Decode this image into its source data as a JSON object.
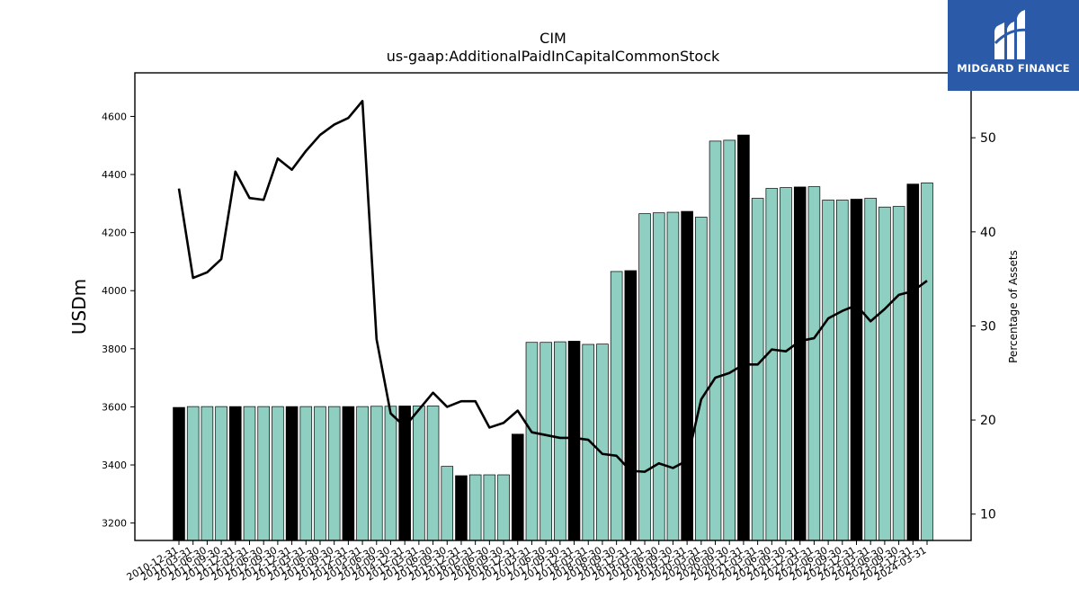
{
  "chart_data": {
    "type": "bar",
    "title": "CIM",
    "subtitle": "us-gaap:AdditionalPaidInCapitalCommonStock",
    "ylabel": "USDm",
    "y2label": "Percentage of Assets",
    "ylim": [
      3140,
      4750
    ],
    "y2lim": [
      7.2,
      56.9
    ],
    "yticks": [
      3200,
      3400,
      3600,
      3800,
      4000,
      4200,
      4400,
      4600
    ],
    "y2ticks": [
      10,
      20,
      30,
      40,
      50
    ],
    "grid": false,
    "categories": [
      "2010-12-31",
      "2011-03-31",
      "2011-06-30",
      "2011-09-30",
      "2011-12-31",
      "2012-03-31",
      "2012-06-30",
      "2012-09-30",
      "2012-12-31",
      "2013-03-31",
      "2013-06-30",
      "2013-09-30",
      "2013-12-31",
      "2014-03-31",
      "2014-06-30",
      "2014-09-30",
      "2014-12-31",
      "2015-03-31",
      "2015-06-30",
      "2015-09-30",
      "2015-12-31",
      "2016-03-31",
      "2016-06-30",
      "2016-09-30",
      "2016-12-31",
      "2017-03-31",
      "2017-06-30",
      "2017-09-30",
      "2017-12-31",
      "2018-03-31",
      "2018-06-30",
      "2018-09-30",
      "2018-12-31",
      "2019-03-31",
      "2019-06-30",
      "2019-09-30",
      "2019-12-31",
      "2020-03-31",
      "2020-06-30",
      "2020-09-30",
      "2020-12-31",
      "2021-03-31",
      "2021-06-30",
      "2021-09-30",
      "2021-12-31",
      "2022-03-31",
      "2022-06-30",
      "2022-09-30",
      "2022-12-31",
      "2023-03-31",
      "2023-06-30",
      "2023-09-30",
      "2023-12-31",
      "2024-03-31"
    ],
    "series": [
      {
        "type": "bar",
        "values": [
          3598,
          3601,
          3601,
          3601,
          3601,
          3601,
          3601,
          3601,
          3601,
          3601,
          3601,
          3601,
          3601,
          3601,
          3602,
          3602,
          3603,
          3603,
          3603,
          3395,
          3363,
          3366,
          3366,
          3366,
          3506,
          3822,
          3822,
          3824,
          3826,
          3815,
          3816,
          4066,
          4069,
          4265,
          4268,
          4270,
          4273,
          4253,
          4515,
          4518,
          4536,
          4318,
          4352,
          4355,
          4357,
          4358,
          4312,
          4312,
          4315,
          4318,
          4288,
          4290,
          4367,
          4371
        ],
        "highlight": [
          true,
          false,
          false,
          false,
          true,
          false,
          false,
          false,
          true,
          false,
          false,
          false,
          true,
          false,
          false,
          false,
          true,
          false,
          false,
          false,
          true,
          false,
          false,
          false,
          true,
          false,
          false,
          false,
          true,
          false,
          false,
          false,
          true,
          false,
          false,
          false,
          true,
          false,
          false,
          false,
          true,
          false,
          false,
          false,
          true,
          false,
          false,
          false,
          true,
          false,
          false,
          false,
          true,
          false
        ],
        "color": "#8ecfc2",
        "highlight_color": "#000000"
      },
      {
        "type": "line",
        "axis": "right",
        "color": "#000000",
        "values": [
          44.6,
          35.1,
          35.7,
          37.1,
          46.4,
          43.6,
          43.4,
          47.8,
          46.6,
          48.6,
          50.3,
          51.4,
          52.1,
          53.9,
          28.6,
          20.7,
          19.3,
          21.1,
          22.9,
          21.4,
          22.0,
          22.0,
          19.2,
          19.7,
          21.0,
          18.7,
          18.4,
          18.1,
          18.1,
          17.9,
          16.4,
          16.2,
          14.6,
          14.5,
          15.4,
          14.9,
          15.7,
          22.2,
          24.5,
          25.0,
          25.9,
          25.9,
          27.5,
          27.3,
          28.4,
          28.7,
          30.8,
          31.6,
          32.2,
          30.5,
          31.8,
          33.3,
          33.7,
          34.8
        ]
      }
    ]
  },
  "brand": {
    "name": "MIDGARD FINANCE",
    "logo_icon": "midgard-logo-icon",
    "bg_color": "#2a5aa8"
  }
}
